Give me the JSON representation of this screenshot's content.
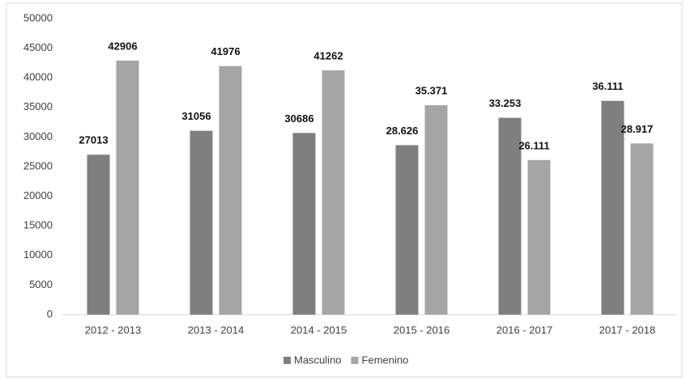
{
  "chart_data": {
    "type": "bar",
    "categories": [
      "2012 - 2013",
      "2013 - 2014",
      "2014 - 2015",
      "2015 - 2016",
      "2016 - 2017",
      "2017 - 2018"
    ],
    "series": [
      {
        "name": "Masculino",
        "color": "#7f7f7f",
        "values": [
          27013,
          31056,
          30686,
          28626,
          33253,
          36111
        ],
        "value_labels": [
          "27013",
          "31056",
          "30686",
          "28.626",
          "33.253",
          "36.111"
        ]
      },
      {
        "name": "Femenino",
        "color": "#a5a5a5",
        "values": [
          42906,
          41976,
          41262,
          35371,
          26111,
          28917
        ],
        "value_labels": [
          "42906",
          "41976",
          "41262",
          "35.371",
          "26.111",
          "28.917"
        ]
      }
    ],
    "ylim": [
      0,
      50000
    ],
    "yticks": [
      0,
      5000,
      10000,
      15000,
      20000,
      25000,
      30000,
      35000,
      40000,
      45000,
      50000
    ],
    "grid": false,
    "legend": "bottom"
  }
}
